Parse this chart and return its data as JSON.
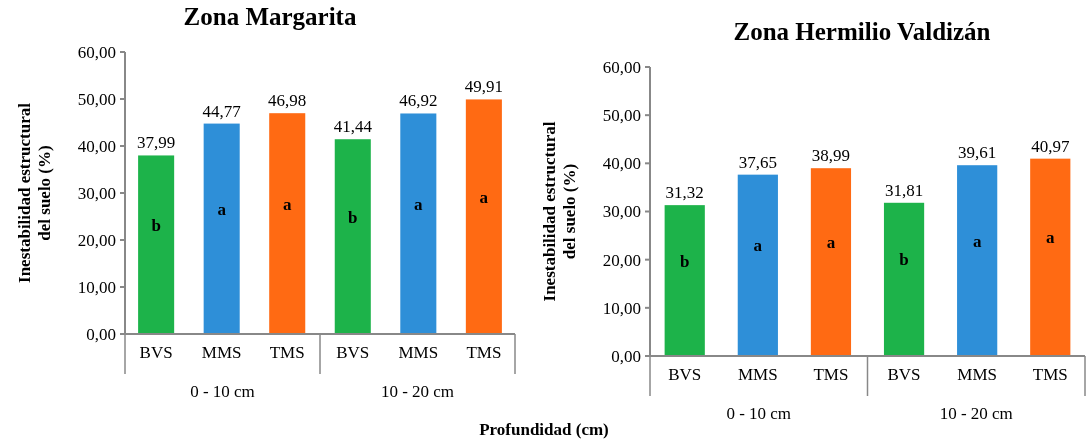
{
  "chart_data": [
    {
      "type": "bar",
      "title": "Zona Margarita",
      "ylabel": "Inestabilidad estructural del suelo (%)",
      "xlabel": "Profundidad (cm)",
      "categories": [
        "BVS",
        "MMS",
        "TMS",
        "BVS",
        "MMS",
        "TMS"
      ],
      "values": [
        37.99,
        44.77,
        46.98,
        41.44,
        46.92,
        49.91
      ],
      "value_labels": [
        "37,99",
        "44,77",
        "46,98",
        "41,44",
        "46,92",
        "49,91"
      ],
      "colors": [
        "#1db34a",
        "#2e8fd8",
        "#ff6a13",
        "#1db34a",
        "#2e8fd8",
        "#ff6a13"
      ],
      "ylim": [
        0,
        60
      ],
      "yticks": [
        {
          "value": 0,
          "label": "0,00"
        },
        {
          "value": 10,
          "label": "10,00"
        },
        {
          "value": 20,
          "label": "20,00"
        },
        {
          "value": 30,
          "label": "30,00"
        },
        {
          "value": 40,
          "label": "40,00"
        },
        {
          "value": 50,
          "label": "50,00"
        },
        {
          "value": 60,
          "label": "60,00"
        }
      ],
      "annotations": [
        "b",
        "a",
        "a",
        "b",
        "a",
        "a",
        "0 - 10 cm",
        "10 - 20 cm"
      ],
      "grid": false
    },
    {
      "type": "bar",
      "title": "Zona Hermilio Valdizán",
      "ylabel": "Inestabilidad estructural del suelo (%)",
      "categories": [
        "BVS",
        "MMS",
        "TMS",
        "BVS",
        "MMS",
        "TMS"
      ],
      "values": [
        31.32,
        37.65,
        38.99,
        31.81,
        39.61,
        40.97
      ],
      "value_labels": [
        "31,32",
        "37,65",
        "38,99",
        "31,81",
        "39,61",
        "40,97"
      ],
      "colors": [
        "#1db34a",
        "#2e8fd8",
        "#ff6a13",
        "#1db34a",
        "#2e8fd8",
        "#ff6a13"
      ],
      "ylim": [
        0,
        60
      ],
      "yticks": [
        {
          "value": 0,
          "label": "0,00"
        },
        {
          "value": 10,
          "label": "10,00"
        },
        {
          "value": 20,
          "label": "20,00"
        },
        {
          "value": 30,
          "label": "30,00"
        },
        {
          "value": 40,
          "label": "40,00"
        },
        {
          "value": 50,
          "label": "50,00"
        },
        {
          "value": 60,
          "label": "60,00"
        }
      ],
      "annotations": [
        "b",
        "a",
        "a",
        "b",
        "a",
        "a",
        "0 - 10 cm",
        "10 - 20 cm"
      ],
      "grid": false
    }
  ]
}
